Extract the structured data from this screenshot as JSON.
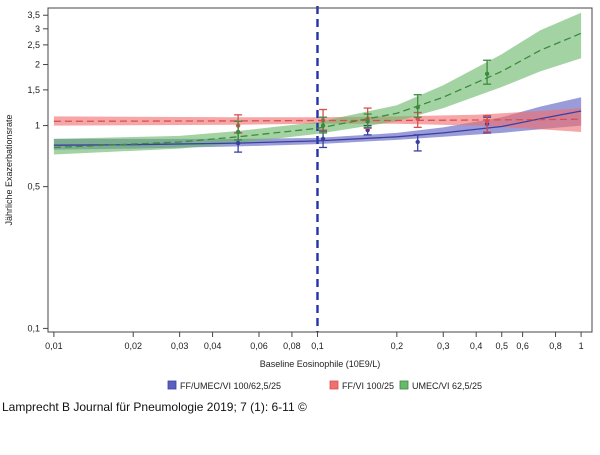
{
  "chart_data": {
    "type": "line",
    "title": "",
    "xlabel": "Baseline Eosinophile (10E9/L)",
    "ylabel": "Jährliche Exazerbationsrate",
    "xscale": "log",
    "yscale": "log",
    "xlim": [
      0.0095,
      1.1
    ],
    "ylim": [
      0.096,
      3.8
    ],
    "x_ticks": [
      {
        "value": 0.01,
        "label": "0,01"
      },
      {
        "value": 0.02,
        "label": "0,02"
      },
      {
        "value": 0.03,
        "label": "0,03"
      },
      {
        "value": 0.04,
        "label": "0,04"
      },
      {
        "value": 0.06,
        "label": "0,06"
      },
      {
        "value": 0.08,
        "label": "0,08"
      },
      {
        "value": 0.1,
        "label": "0,1"
      },
      {
        "value": 0.2,
        "label": "0,2"
      },
      {
        "value": 0.3,
        "label": "0,3"
      },
      {
        "value": 0.4,
        "label": "0,4"
      },
      {
        "value": 0.5,
        "label": "0,5"
      },
      {
        "value": 0.6,
        "label": "0,6"
      },
      {
        "value": 0.8,
        "label": "0,8"
      },
      {
        "value": 1,
        "label": "1"
      }
    ],
    "y_ticks": [
      {
        "value": 0.1,
        "label": "0,1"
      },
      {
        "value": 0.5,
        "label": "0,5"
      },
      {
        "value": 1,
        "label": "1"
      },
      {
        "value": 1.5,
        "label": "1,5"
      },
      {
        "value": 2,
        "label": "2"
      },
      {
        "value": 2.5,
        "label": "2,5"
      },
      {
        "value": 3,
        "label": "3"
      },
      {
        "value": 3.5,
        "label": "3,5"
      }
    ],
    "reference_line": {
      "x": 0.1,
      "color": "#2233aa",
      "style": "dashed"
    },
    "legend_position": "bottom",
    "series": [
      {
        "name": "FF/UMEC/VI 100/62,5/25",
        "color": "#3a3fa0",
        "band_color": "#5a5fc0",
        "line_style": "solid",
        "curve": [
          {
            "x": 0.01,
            "y": 0.8,
            "lo": 0.76,
            "hi": 0.86
          },
          {
            "x": 0.02,
            "y": 0.805,
            "lo": 0.77,
            "hi": 0.86
          },
          {
            "x": 0.05,
            "y": 0.82,
            "lo": 0.79,
            "hi": 0.86
          },
          {
            "x": 0.1,
            "y": 0.84,
            "lo": 0.81,
            "hi": 0.87
          },
          {
            "x": 0.2,
            "y": 0.88,
            "lo": 0.85,
            "hi": 0.92
          },
          {
            "x": 0.3,
            "y": 0.92,
            "lo": 0.88,
            "hi": 0.98
          },
          {
            "x": 0.5,
            "y": 0.99,
            "lo": 0.92,
            "hi": 1.1
          },
          {
            "x": 0.7,
            "y": 1.08,
            "lo": 0.96,
            "hi": 1.24
          },
          {
            "x": 1.0,
            "y": 1.18,
            "lo": 1.0,
            "hi": 1.38
          }
        ],
        "points": [
          {
            "x": 0.05,
            "y": 0.82,
            "lo": 0.74,
            "hi": 0.92
          },
          {
            "x": 0.105,
            "y": 0.86,
            "lo": 0.78,
            "hi": 0.94
          },
          {
            "x": 0.155,
            "y": 0.95,
            "lo": 0.9,
            "hi": 1.0
          },
          {
            "x": 0.24,
            "y": 0.83,
            "lo": 0.75,
            "hi": 0.9
          },
          {
            "x": 0.44,
            "y": 1.02,
            "lo": 0.92,
            "hi": 1.1
          }
        ]
      },
      {
        "name": "FF/VI 100/25",
        "color": "#d94f4f",
        "band_color": "#f07070",
        "line_style": "dashed",
        "curve": [
          {
            "x": 0.01,
            "y": 1.05,
            "lo": 1.0,
            "hi": 1.11
          },
          {
            "x": 0.05,
            "y": 1.055,
            "lo": 1.01,
            "hi": 1.1
          },
          {
            "x": 0.1,
            "y": 1.06,
            "lo": 1.02,
            "hi": 1.1
          },
          {
            "x": 0.2,
            "y": 1.06,
            "lo": 1.02,
            "hi": 1.11
          },
          {
            "x": 0.4,
            "y": 1.065,
            "lo": 1.0,
            "hi": 1.13
          },
          {
            "x": 0.7,
            "y": 1.07,
            "lo": 0.96,
            "hi": 1.18
          },
          {
            "x": 1.0,
            "y": 1.075,
            "lo": 0.93,
            "hi": 1.22
          }
        ],
        "points": [
          {
            "x": 0.05,
            "y": 1.0,
            "lo": 0.92,
            "hi": 1.13
          },
          {
            "x": 0.105,
            "y": 1.06,
            "lo": 0.95,
            "hi": 1.2
          },
          {
            "x": 0.155,
            "y": 1.08,
            "lo": 0.97,
            "hi": 1.22
          },
          {
            "x": 0.24,
            "y": 1.08,
            "lo": 0.98,
            "hi": 1.16
          },
          {
            "x": 0.44,
            "y": 1.05,
            "lo": 0.93,
            "hi": 1.12
          }
        ]
      },
      {
        "name": "UMEC/VI 62,5/25",
        "color": "#3d8a3d",
        "band_color": "#6ab86a",
        "line_style": "dashed",
        "curve": [
          {
            "x": 0.01,
            "y": 0.78,
            "lo": 0.72,
            "hi": 0.86
          },
          {
            "x": 0.03,
            "y": 0.83,
            "lo": 0.77,
            "hi": 0.89
          },
          {
            "x": 0.05,
            "y": 0.88,
            "lo": 0.82,
            "hi": 0.94
          },
          {
            "x": 0.1,
            "y": 0.97,
            "lo": 0.91,
            "hi": 1.04
          },
          {
            "x": 0.2,
            "y": 1.15,
            "lo": 1.05,
            "hi": 1.26
          },
          {
            "x": 0.3,
            "y": 1.38,
            "lo": 1.22,
            "hi": 1.58
          },
          {
            "x": 0.5,
            "y": 1.85,
            "lo": 1.55,
            "hi": 2.25
          },
          {
            "x": 0.7,
            "y": 2.35,
            "lo": 1.85,
            "hi": 2.95
          },
          {
            "x": 1.0,
            "y": 2.85,
            "lo": 2.15,
            "hi": 3.6
          }
        ],
        "points": [
          {
            "x": 0.05,
            "y": 0.93,
            "lo": 0.85,
            "hi": 1.05
          },
          {
            "x": 0.105,
            "y": 1.0,
            "lo": 0.92,
            "hi": 1.1
          },
          {
            "x": 0.155,
            "y": 1.05,
            "lo": 0.98,
            "hi": 1.14
          },
          {
            "x": 0.24,
            "y": 1.23,
            "lo": 1.1,
            "hi": 1.42
          },
          {
            "x": 0.44,
            "y": 1.8,
            "lo": 1.6,
            "hi": 2.1
          }
        ]
      }
    ]
  },
  "citation": "Lamprecht B Journal für Pneumologie 2019; 7 (1): 6-11 ©"
}
